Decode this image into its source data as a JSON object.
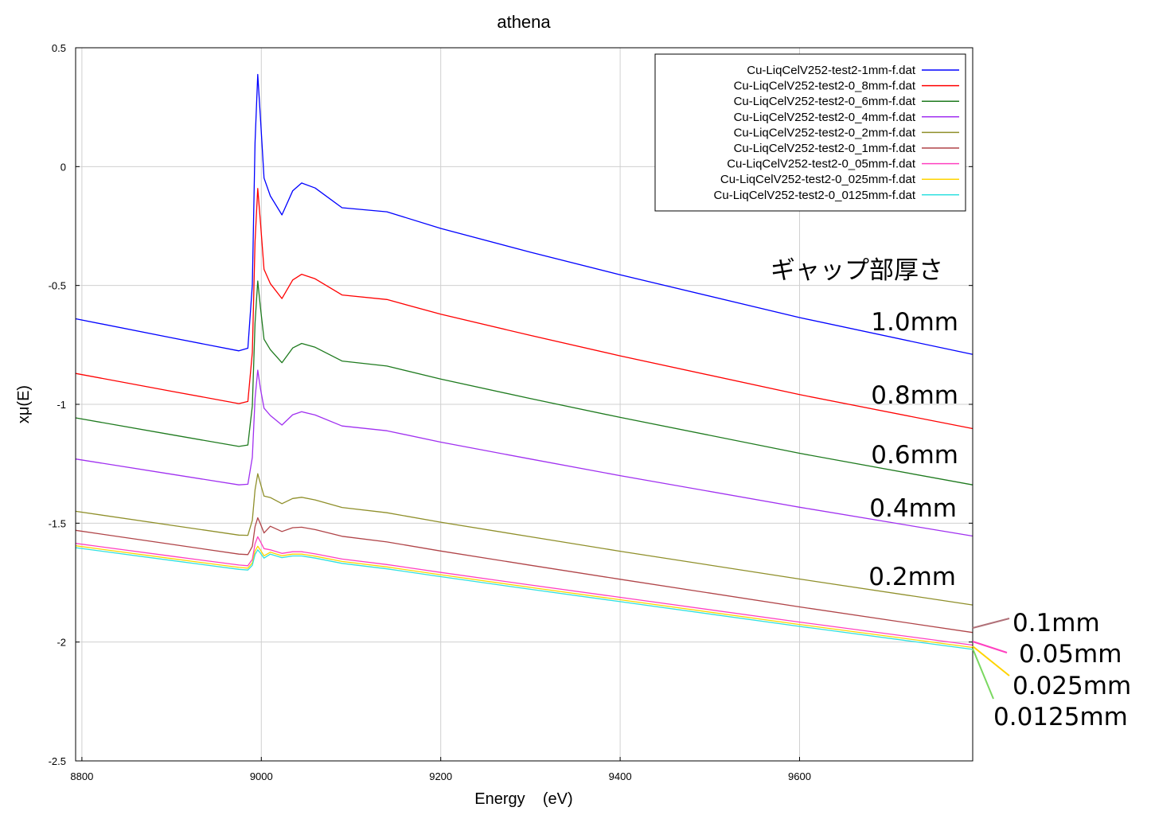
{
  "chart_data": {
    "type": "line",
    "title": "athena",
    "xlabel": "Energy    (eV)",
    "ylabel": "xμ(E)",
    "xlim": [
      8793,
      9793
    ],
    "ylim": [
      -2.5,
      0.5
    ],
    "xticks": [
      8800,
      9000,
      9200,
      9400,
      9600
    ],
    "yticks": [
      0.5,
      0,
      -0.5,
      -1,
      -1.5,
      -2,
      -2.5
    ],
    "grid": true,
    "legend_position": "top-right",
    "x": [
      8793,
      8900,
      8975,
      8985,
      8990,
      8993,
      8996,
      8999,
      9003,
      9010,
      9023,
      9035,
      9045,
      9060,
      9090,
      9140,
      9200,
      9300,
      9400,
      9600,
      9793
    ],
    "series": [
      {
        "name": "Cu-LiqCelV252-test2-1mm-f.dat",
        "color": "#0000ff",
        "values": [
          -0.64,
          -0.72,
          -0.775,
          -0.764,
          -0.498,
          0.1,
          0.388,
          0.205,
          -0.048,
          -0.123,
          -0.203,
          -0.102,
          -0.069,
          -0.09,
          -0.173,
          -0.19,
          -0.26,
          -0.36,
          -0.455,
          -0.635,
          -0.79
        ]
      },
      {
        "name": "Cu-LiqCelV252-test2-0_8mm-f.dat",
        "color": "#ff0000",
        "values": [
          -0.87,
          -0.945,
          -0.997,
          -0.988,
          -0.782,
          -0.316,
          -0.092,
          -0.234,
          -0.432,
          -0.492,
          -0.555,
          -0.477,
          -0.453,
          -0.472,
          -0.54,
          -0.559,
          -0.621,
          -0.71,
          -0.796,
          -0.959,
          -1.102
        ]
      },
      {
        "name": "Cu-LiqCelV252-test2-0_6mm-f.dat",
        "color": "#1e7a1e",
        "values": [
          -1.057,
          -1.128,
          -1.177,
          -1.171,
          -1.007,
          -0.659,
          -0.481,
          -0.593,
          -0.726,
          -0.77,
          -0.825,
          -0.763,
          -0.744,
          -0.76,
          -0.818,
          -0.839,
          -0.894,
          -0.976,
          -1.055,
          -1.206,
          -1.339
        ]
      },
      {
        "name": "Cu-LiqCelV252-test2-0_4mm-f.dat",
        "color": "#a030f0",
        "values": [
          -1.23,
          -1.294,
          -1.339,
          -1.336,
          -1.223,
          -0.976,
          -0.856,
          -0.934,
          -1.016,
          -1.047,
          -1.087,
          -1.044,
          -1.031,
          -1.045,
          -1.091,
          -1.111,
          -1.159,
          -1.23,
          -1.3,
          -1.433,
          -1.554
        ]
      },
      {
        "name": "Cu-LiqCelV252-test2-0_2mm-f.dat",
        "color": "#8f8f2a",
        "values": [
          -1.45,
          -1.509,
          -1.55,
          -1.551,
          -1.488,
          -1.36,
          -1.292,
          -1.333,
          -1.386,
          -1.392,
          -1.418,
          -1.396,
          -1.391,
          -1.402,
          -1.434,
          -1.456,
          -1.496,
          -1.557,
          -1.618,
          -1.735,
          -1.844
        ]
      },
      {
        "name": "Cu-LiqCelV252-test2-0_1mm-f.dat",
        "color": "#b04448",
        "values": [
          -1.53,
          -1.589,
          -1.63,
          -1.632,
          -1.598,
          -1.515,
          -1.477,
          -1.503,
          -1.541,
          -1.513,
          -1.535,
          -1.519,
          -1.517,
          -1.527,
          -1.555,
          -1.579,
          -1.617,
          -1.677,
          -1.736,
          -1.852,
          -1.96
        ]
      },
      {
        "name": "Cu-LiqCelV252-test2-0_05mm-f.dat",
        "color": "#ff40c0",
        "values": [
          -1.585,
          -1.639,
          -1.676,
          -1.679,
          -1.652,
          -1.587,
          -1.557,
          -1.578,
          -1.607,
          -1.612,
          -1.627,
          -1.62,
          -1.62,
          -1.629,
          -1.651,
          -1.674,
          -1.707,
          -1.76,
          -1.812,
          -1.916,
          -2.013
        ]
      },
      {
        "name": "Cu-LiqCelV252-test2-0_025mm-f.dat",
        "color": "#ffd400",
        "values": [
          -1.595,
          -1.649,
          -1.686,
          -1.689,
          -1.667,
          -1.617,
          -1.597,
          -1.613,
          -1.637,
          -1.622,
          -1.637,
          -1.63,
          -1.63,
          -1.639,
          -1.661,
          -1.684,
          -1.717,
          -1.77,
          -1.822,
          -1.926,
          -2.023
        ]
      },
      {
        "name": "Cu-LiqCelV252-test2-0_0125mm-f.dat",
        "color": "#30e0e0",
        "values": [
          -1.603,
          -1.657,
          -1.694,
          -1.697,
          -1.677,
          -1.632,
          -1.612,
          -1.626,
          -1.647,
          -1.63,
          -1.645,
          -1.638,
          -1.638,
          -1.647,
          -1.669,
          -1.692,
          -1.725,
          -1.778,
          -1.83,
          -1.934,
          -2.031
        ]
      }
    ],
    "annotations": {
      "heading": "ギャップ部厚さ",
      "labels": [
        "1.0mm",
        "0.8mm",
        "0.6mm",
        "0.4mm",
        "0.2mm",
        "0.1mm",
        "0.05mm",
        "0.025mm",
        "0.0125mm"
      ]
    }
  }
}
